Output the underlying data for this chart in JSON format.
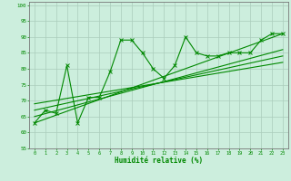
{
  "xlabel": "Humidité relative (%)",
  "bg_color": "#cceedd",
  "grid_color": "#aaccbb",
  "line_color": "#008800",
  "xlim": [
    -0.5,
    23.5
  ],
  "ylim": [
    55,
    101
  ],
  "xticks": [
    0,
    1,
    2,
    3,
    4,
    5,
    6,
    7,
    8,
    9,
    10,
    11,
    12,
    13,
    14,
    15,
    16,
    17,
    18,
    19,
    20,
    21,
    22,
    23
  ],
  "yticks": [
    55,
    60,
    65,
    70,
    75,
    80,
    85,
    90,
    95,
    100
  ],
  "series1_x": [
    0,
    1,
    2,
    3,
    4,
    5,
    6,
    7,
    8,
    9,
    10,
    11,
    12,
    13,
    14,
    15,
    16,
    17,
    18,
    19,
    20,
    21,
    22,
    23
  ],
  "series1_y": [
    63,
    67,
    66,
    81,
    63,
    71,
    71,
    79,
    89,
    89,
    85,
    80,
    77,
    81,
    90,
    85,
    84,
    84,
    85,
    85,
    85,
    89,
    91,
    91
  ],
  "trend1_x": [
    0,
    23
  ],
  "trend1_y": [
    63,
    91
  ],
  "trend2_x": [
    0,
    23
  ],
  "trend2_y": [
    65,
    86
  ],
  "trend3_x": [
    0,
    23
  ],
  "trend3_y": [
    67,
    84
  ],
  "trend4_x": [
    0,
    23
  ],
  "trend4_y": [
    69,
    82
  ]
}
